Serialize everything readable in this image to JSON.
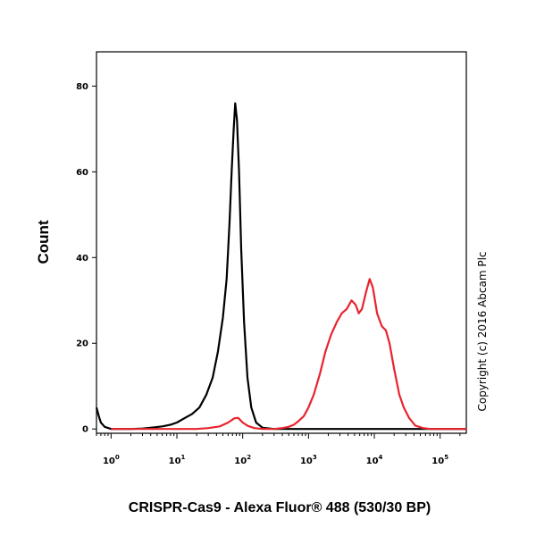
{
  "chart_data": {
    "type": "line",
    "xlabel": "CRISPR-Cas9 - Alexa Fluor® 488 (530/30 BP)",
    "ylabel": "Count",
    "x_scale": "log",
    "xlim": [
      0.6,
      250000
    ],
    "ylim": [
      -1,
      88
    ],
    "yticks": [
      "0",
      "20",
      "40",
      "60",
      "80"
    ],
    "xticks": [
      {
        "base": "10",
        "exp": "0",
        "value": 1
      },
      {
        "base": "10",
        "exp": "1",
        "value": 10
      },
      {
        "base": "10",
        "exp": "2",
        "value": 100
      },
      {
        "base": "10",
        "exp": "3",
        "value": 1000
      },
      {
        "base": "10",
        "exp": "4",
        "value": 10000
      },
      {
        "base": "10",
        "exp": "5",
        "value": 100000
      }
    ],
    "annotation": "Copyright (c) 2016 Abcam Plc",
    "series": [
      {
        "color": "#000000",
        "points": [
          [
            0.6,
            5
          ],
          [
            0.65,
            3
          ],
          [
            0.7,
            1.5
          ],
          [
            0.8,
            0.5
          ],
          [
            1,
            0
          ],
          [
            2,
            0
          ],
          [
            3,
            0.1
          ],
          [
            4,
            0.3
          ],
          [
            6,
            0.6
          ],
          [
            8,
            1
          ],
          [
            10,
            1.5
          ],
          [
            13,
            2.5
          ],
          [
            17,
            3.5
          ],
          [
            22,
            5
          ],
          [
            28,
            8
          ],
          [
            35,
            12
          ],
          [
            42,
            18
          ],
          [
            50,
            26
          ],
          [
            57,
            35
          ],
          [
            63,
            48
          ],
          [
            68,
            60
          ],
          [
            73,
            70
          ],
          [
            77,
            76
          ],
          [
            82,
            72
          ],
          [
            88,
            60
          ],
          [
            95,
            42
          ],
          [
            105,
            25
          ],
          [
            118,
            12
          ],
          [
            135,
            5
          ],
          [
            160,
            1.5
          ],
          [
            200,
            0.3
          ],
          [
            300,
            0
          ],
          [
            250000,
            0
          ]
        ]
      },
      {
        "color": "#e8242e",
        "points": [
          [
            1,
            0
          ],
          [
            20,
            0
          ],
          [
            30,
            0.2
          ],
          [
            45,
            0.6
          ],
          [
            60,
            1.5
          ],
          [
            75,
            2.5
          ],
          [
            85,
            2.6
          ],
          [
            100,
            1.5
          ],
          [
            120,
            0.7
          ],
          [
            150,
            0.2
          ],
          [
            200,
            0
          ],
          [
            300,
            0
          ],
          [
            400,
            0.2
          ],
          [
            500,
            0.5
          ],
          [
            600,
            1
          ],
          [
            700,
            1.8
          ],
          [
            850,
            3
          ],
          [
            1000,
            5
          ],
          [
            1200,
            8
          ],
          [
            1500,
            13
          ],
          [
            1800,
            18
          ],
          [
            2200,
            22
          ],
          [
            2700,
            25
          ],
          [
            3200,
            27
          ],
          [
            3800,
            28
          ],
          [
            4500,
            30
          ],
          [
            5200,
            29
          ],
          [
            5800,
            27
          ],
          [
            6500,
            28
          ],
          [
            7500,
            32
          ],
          [
            8500,
            35
          ],
          [
            9500,
            33
          ],
          [
            11000,
            27
          ],
          [
            13000,
            24
          ],
          [
            15000,
            23
          ],
          [
            17000,
            20
          ],
          [
            20000,
            14
          ],
          [
            24000,
            8
          ],
          [
            28000,
            5
          ],
          [
            34000,
            2.5
          ],
          [
            42000,
            0.8
          ],
          [
            55000,
            0.2
          ],
          [
            70000,
            0
          ],
          [
            250000,
            0
          ]
        ]
      }
    ]
  }
}
